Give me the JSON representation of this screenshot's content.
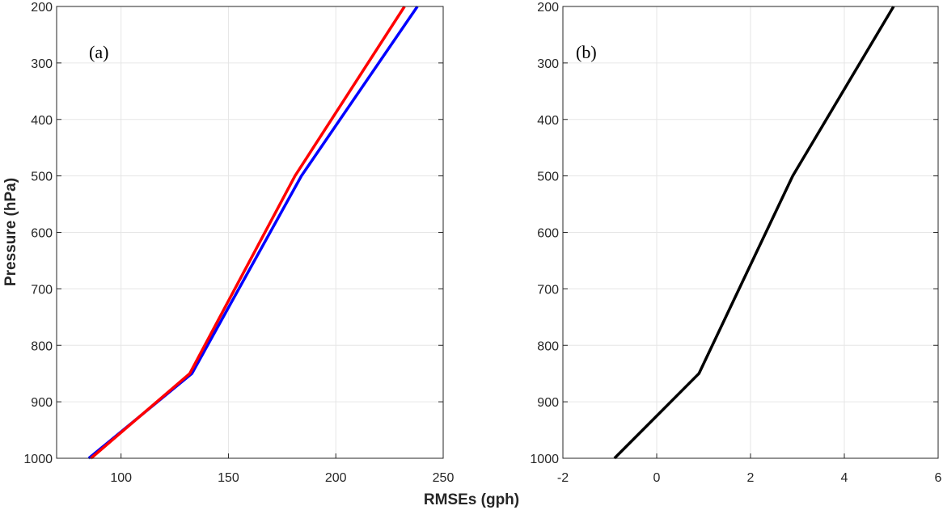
{
  "xlabel": "RMSEs (gph)",
  "ylabel": "Pressure (hPa)",
  "colors": {
    "axis": "#262626",
    "grid": "#e6e6e6",
    "red": "#ff0000",
    "blue": "#0000ff",
    "black": "#000000"
  },
  "chart_data": [
    {
      "type": "line",
      "panel_label": "(a)",
      "xlim": [
        70,
        250
      ],
      "ylim": [
        200,
        1000
      ],
      "y_reversed": true,
      "grid": true,
      "x_ticks": [
        100,
        150,
        200,
        250
      ],
      "y_ticks": [
        200,
        300,
        400,
        500,
        600,
        700,
        800,
        900,
        1000
      ],
      "series": [
        {
          "color": "#0000ff",
          "x": [
            85,
            133,
            184,
            238
          ],
          "y": [
            1000,
            850,
            500,
            200
          ]
        },
        {
          "color": "#ff0000",
          "x": [
            86,
            132,
            181,
            232
          ],
          "y": [
            1000,
            850,
            500,
            200
          ]
        }
      ]
    },
    {
      "type": "line",
      "panel_label": "(b)",
      "xlim": [
        -2,
        6
      ],
      "ylim": [
        200,
        1000
      ],
      "y_reversed": true,
      "grid": true,
      "x_ticks": [
        -2,
        0,
        2,
        4,
        6
      ],
      "y_ticks": [
        200,
        300,
        400,
        500,
        600,
        700,
        800,
        900,
        1000
      ],
      "series": [
        {
          "color": "#000000",
          "x": [
            -0.9,
            0.9,
            2.9,
            5.05
          ],
          "y": [
            1000,
            850,
            500,
            200
          ]
        }
      ]
    }
  ]
}
